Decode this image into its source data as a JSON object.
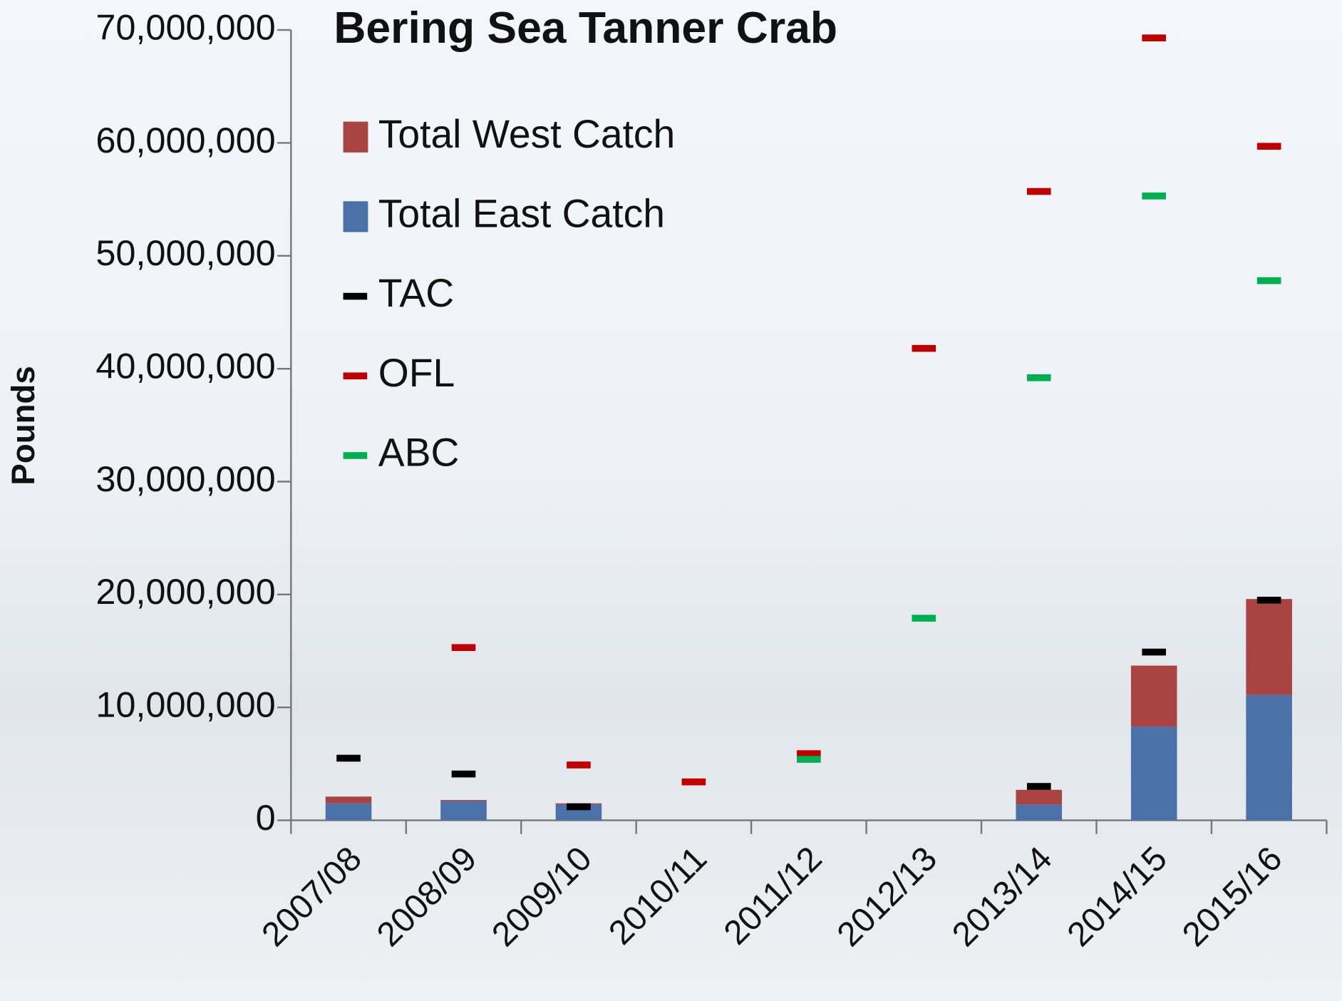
{
  "chart_data": {
    "type": "bar",
    "stacked": true,
    "title": "Bering Sea Tanner Crab",
    "y_label": "Pounds",
    "categories": [
      "2007/08",
      "2008/09",
      "2009/10",
      "2010/11",
      "2011/12",
      "2012/13",
      "2013/14",
      "2014/15",
      "2015/16"
    ],
    "series": [
      {
        "name": "Total West Catch",
        "type": "bar",
        "color": "#a94442",
        "values": [
          600000,
          100000,
          100000,
          0,
          0,
          0,
          1300000,
          5400000,
          8500000
        ]
      },
      {
        "name": "Total East Catch",
        "type": "bar",
        "color": "#4a72a8",
        "values": [
          1500000,
          1700000,
          1400000,
          0,
          0,
          0,
          1400000,
          8300000,
          11100000
        ]
      },
      {
        "name": "TAC",
        "type": "dash",
        "color": "#000000",
        "values": [
          5500000,
          4100000,
          1200000,
          null,
          null,
          null,
          3000000,
          14900000,
          19500000
        ]
      },
      {
        "name": "OFL",
        "type": "dash",
        "color": "#c00000",
        "values": [
          null,
          15300000,
          4900000,
          3400000,
          5900000,
          41800000,
          55700000,
          69300000,
          59700000
        ]
      },
      {
        "name": "ABC",
        "type": "dash",
        "color": "#00b050",
        "values": [
          null,
          null,
          null,
          null,
          5400000,
          17900000,
          39200000,
          55300000,
          47800000
        ]
      }
    ],
    "ylim": [
      0,
      70000000
    ],
    "yticks": [
      0,
      {
        "value": 10000000,
        "label": "10,000,000"
      },
      {
        "value": 20000000,
        "label": "20,000,000"
      },
      {
        "value": 30000000,
        "label": "30,000,000"
      },
      {
        "value": 40000000,
        "label": "40,000,000"
      },
      {
        "value": 50000000,
        "label": "50,000,000"
      },
      {
        "value": 60000000,
        "label": "60,000,000"
      },
      {
        "value": 70000000,
        "label": "70,000,000"
      }
    ],
    "legend": "upper left"
  }
}
